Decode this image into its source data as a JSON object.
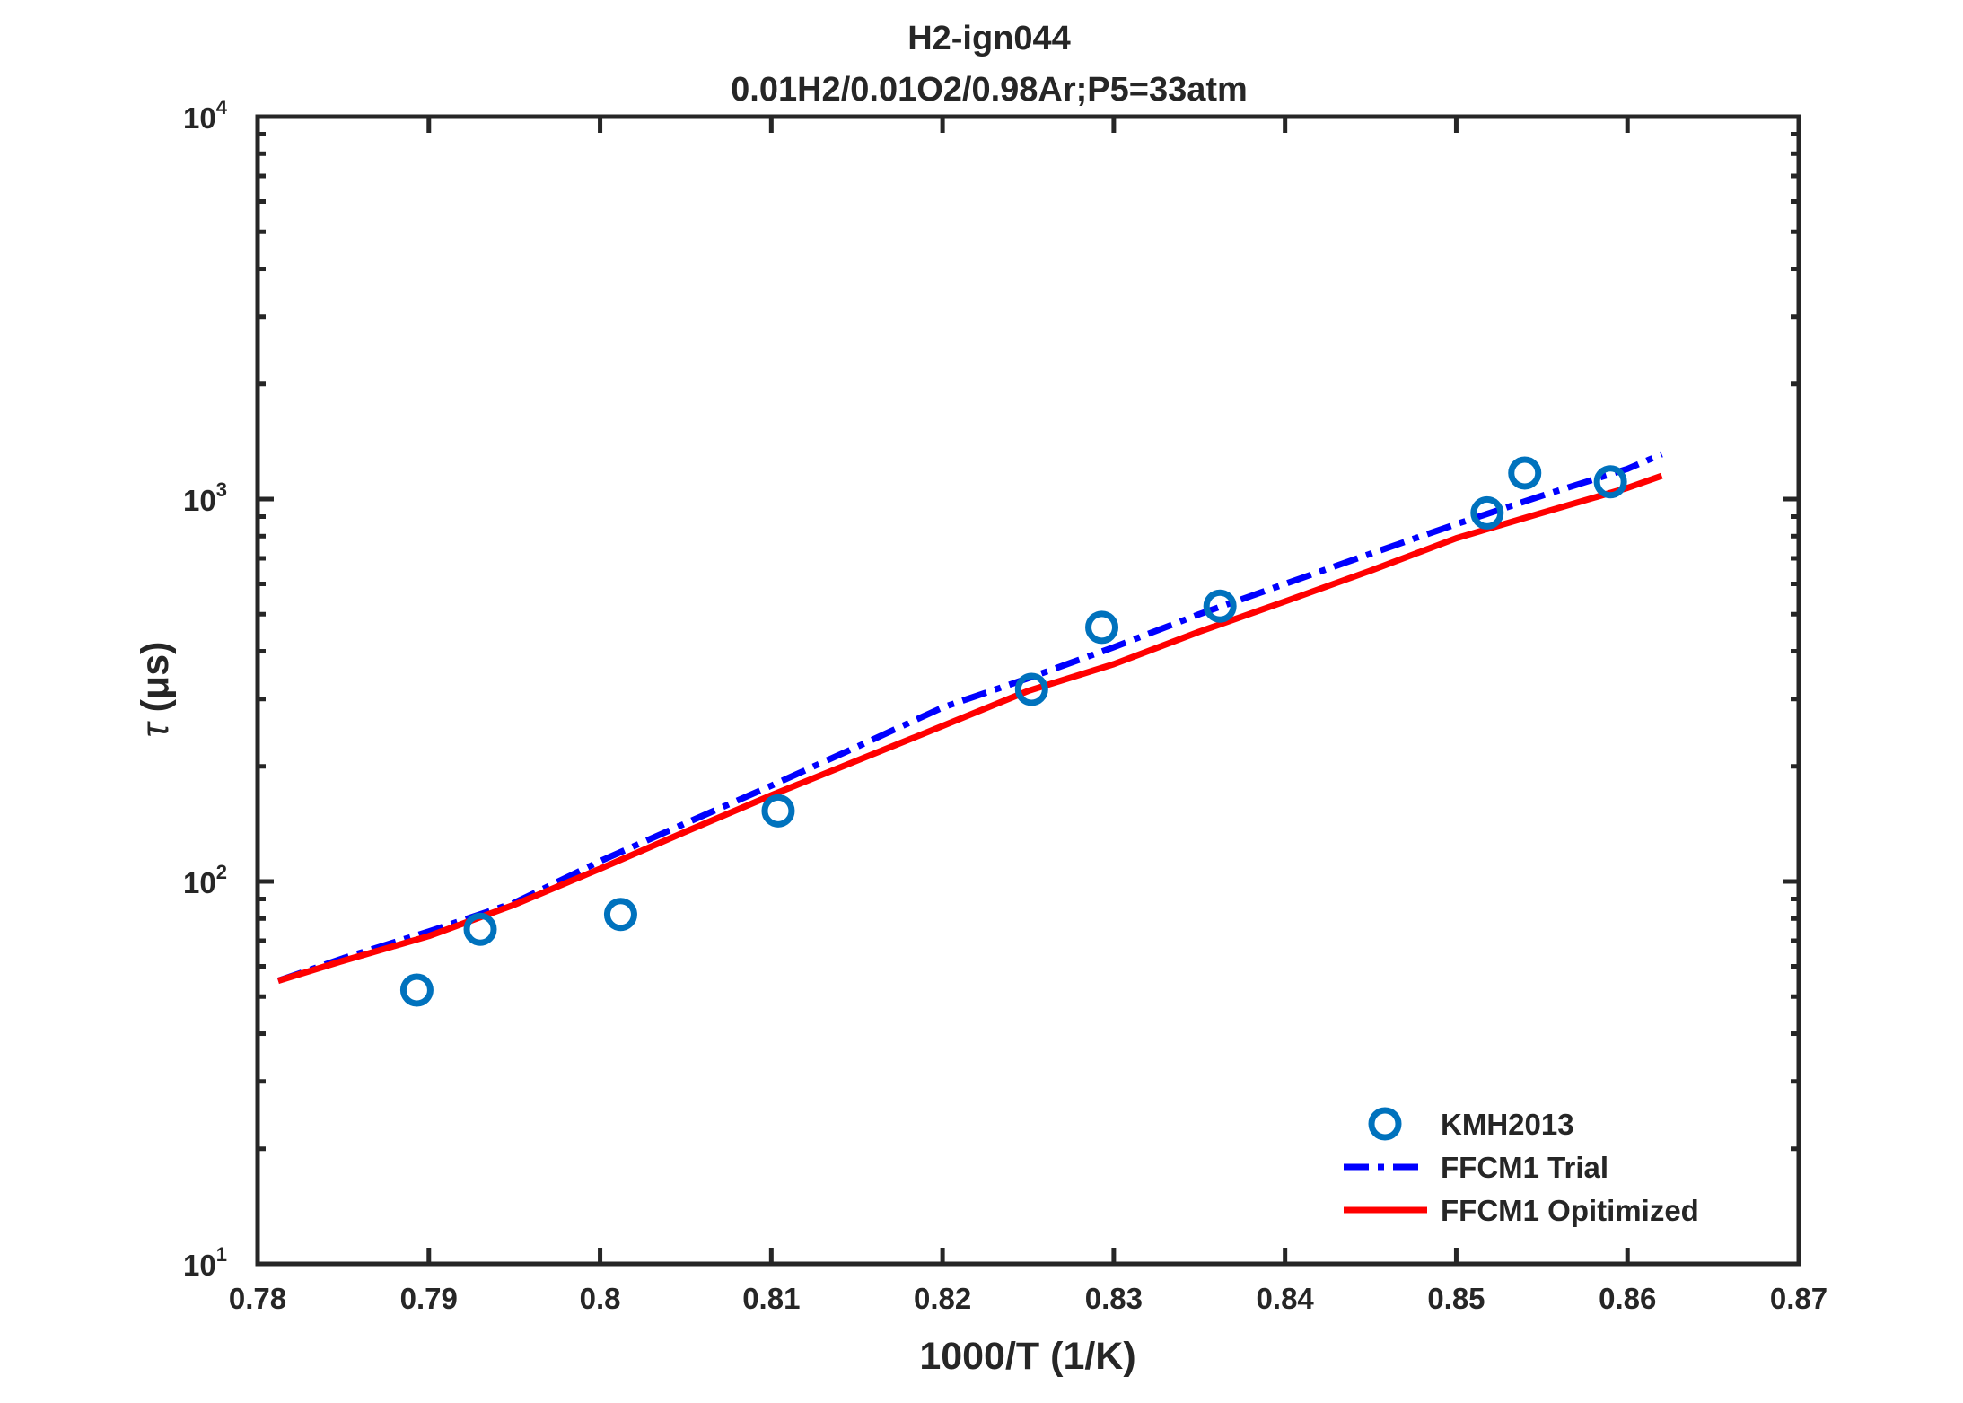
{
  "chart_data": {
    "type": "scatter",
    "title": "H2-ign044",
    "subtitle": "0.01H2/0.01O2/0.98Ar;P5=33atm",
    "xlabel": "1000/T (1/K)",
    "ylabel_symbol": "τ",
    "ylabel_unit": "(μs)",
    "xlim": [
      0.78,
      0.87
    ],
    "ylim": [
      10,
      10000
    ],
    "yscale": "log",
    "xticks": [
      "0.78",
      "0.79",
      "0.8",
      "0.81",
      "0.82",
      "0.83",
      "0.84",
      "0.85",
      "0.86",
      "0.87"
    ],
    "xtick_values": [
      0.78,
      0.79,
      0.8,
      0.81,
      0.82,
      0.83,
      0.84,
      0.85,
      0.86,
      0.87
    ],
    "yticks": [
      {
        "value": 10,
        "base": "10",
        "exp": "1"
      },
      {
        "value": 100,
        "base": "10",
        "exp": "2"
      },
      {
        "value": 1000,
        "base": "10",
        "exp": "3"
      },
      {
        "value": 10000,
        "base": "10",
        "exp": "4"
      }
    ],
    "grid": false,
    "legend_position": "bottom-right",
    "series": [
      {
        "name": "KMH2013",
        "kind": "markers",
        "marker": "circle",
        "color": "#0072BD",
        "x": [
          0.7893,
          0.793,
          0.8012,
          0.8104,
          0.8252,
          0.8293,
          0.8362,
          0.8518,
          0.854,
          0.859
        ],
        "y": [
          52,
          75,
          82,
          153,
          318,
          462,
          525,
          920,
          1170,
          1110
        ]
      },
      {
        "name": "FFCM1 Trial",
        "kind": "line",
        "dash": "dashdot",
        "color": "#0000FF",
        "x": [
          0.7812,
          0.785,
          0.79,
          0.795,
          0.8,
          0.805,
          0.81,
          0.815,
          0.82,
          0.825,
          0.83,
          0.835,
          0.84,
          0.845,
          0.85,
          0.855,
          0.86,
          0.862
        ],
        "y": [
          55,
          63,
          74,
          88,
          113,
          142,
          178,
          225,
          285,
          340,
          410,
          500,
          600,
          720,
          860,
          1020,
          1200,
          1310
        ]
      },
      {
        "name": "FFCM1 Opitimized",
        "kind": "line",
        "dash": "solid",
        "color": "#FF0000",
        "x": [
          0.7812,
          0.785,
          0.79,
          0.795,
          0.8,
          0.805,
          0.81,
          0.815,
          0.82,
          0.825,
          0.83,
          0.835,
          0.84,
          0.845,
          0.85,
          0.855,
          0.86,
          0.862
        ],
        "y": [
          55,
          62,
          72,
          87,
          108,
          135,
          168,
          207,
          255,
          315,
          370,
          450,
          540,
          650,
          790,
          920,
          1070,
          1150
        ]
      }
    ]
  }
}
